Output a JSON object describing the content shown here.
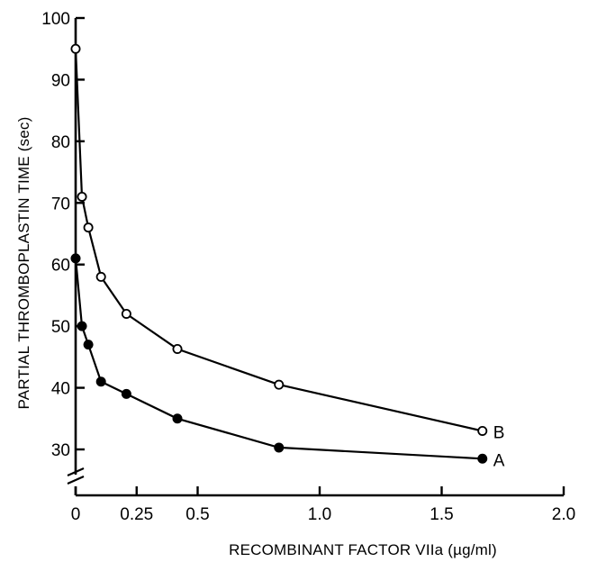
{
  "chart_data": {
    "type": "line",
    "title": "",
    "xlabel": "RECOMBINANT FACTOR VIIa (µg/ml)",
    "ylabel": "PARTIAL THROMBOPLASTIN TIME (sec)",
    "xlim": [
      0,
      2.0
    ],
    "ylim": [
      20,
      100
    ],
    "y_axis_break": true,
    "grid": false,
    "x_ticks": [
      0,
      0.25,
      0.5,
      1.0,
      1.5,
      2.0
    ],
    "x_tick_labels": [
      "0",
      "0.25",
      "0.5",
      "1.0",
      "1.5",
      "2.0"
    ],
    "y_ticks": [
      30,
      40,
      50,
      60,
      70,
      80,
      90,
      100
    ],
    "y_tick_labels": [
      "30",
      "40",
      "50",
      "60",
      "70",
      "80",
      "90",
      "100"
    ],
    "series": [
      {
        "name": "A",
        "marker": "filled-circle",
        "x": [
          0,
          0.026,
          0.052,
          0.104,
          0.208,
          0.417,
          0.833,
          1.667
        ],
        "y": [
          61,
          50,
          47,
          41,
          39,
          35,
          30.3,
          28.5
        ]
      },
      {
        "name": "B",
        "marker": "open-circle",
        "x": [
          0,
          0.026,
          0.052,
          0.104,
          0.208,
          0.417,
          0.833,
          1.667
        ],
        "y": [
          95,
          71,
          66,
          58,
          52,
          46.3,
          40.5,
          33
        ]
      }
    ]
  }
}
